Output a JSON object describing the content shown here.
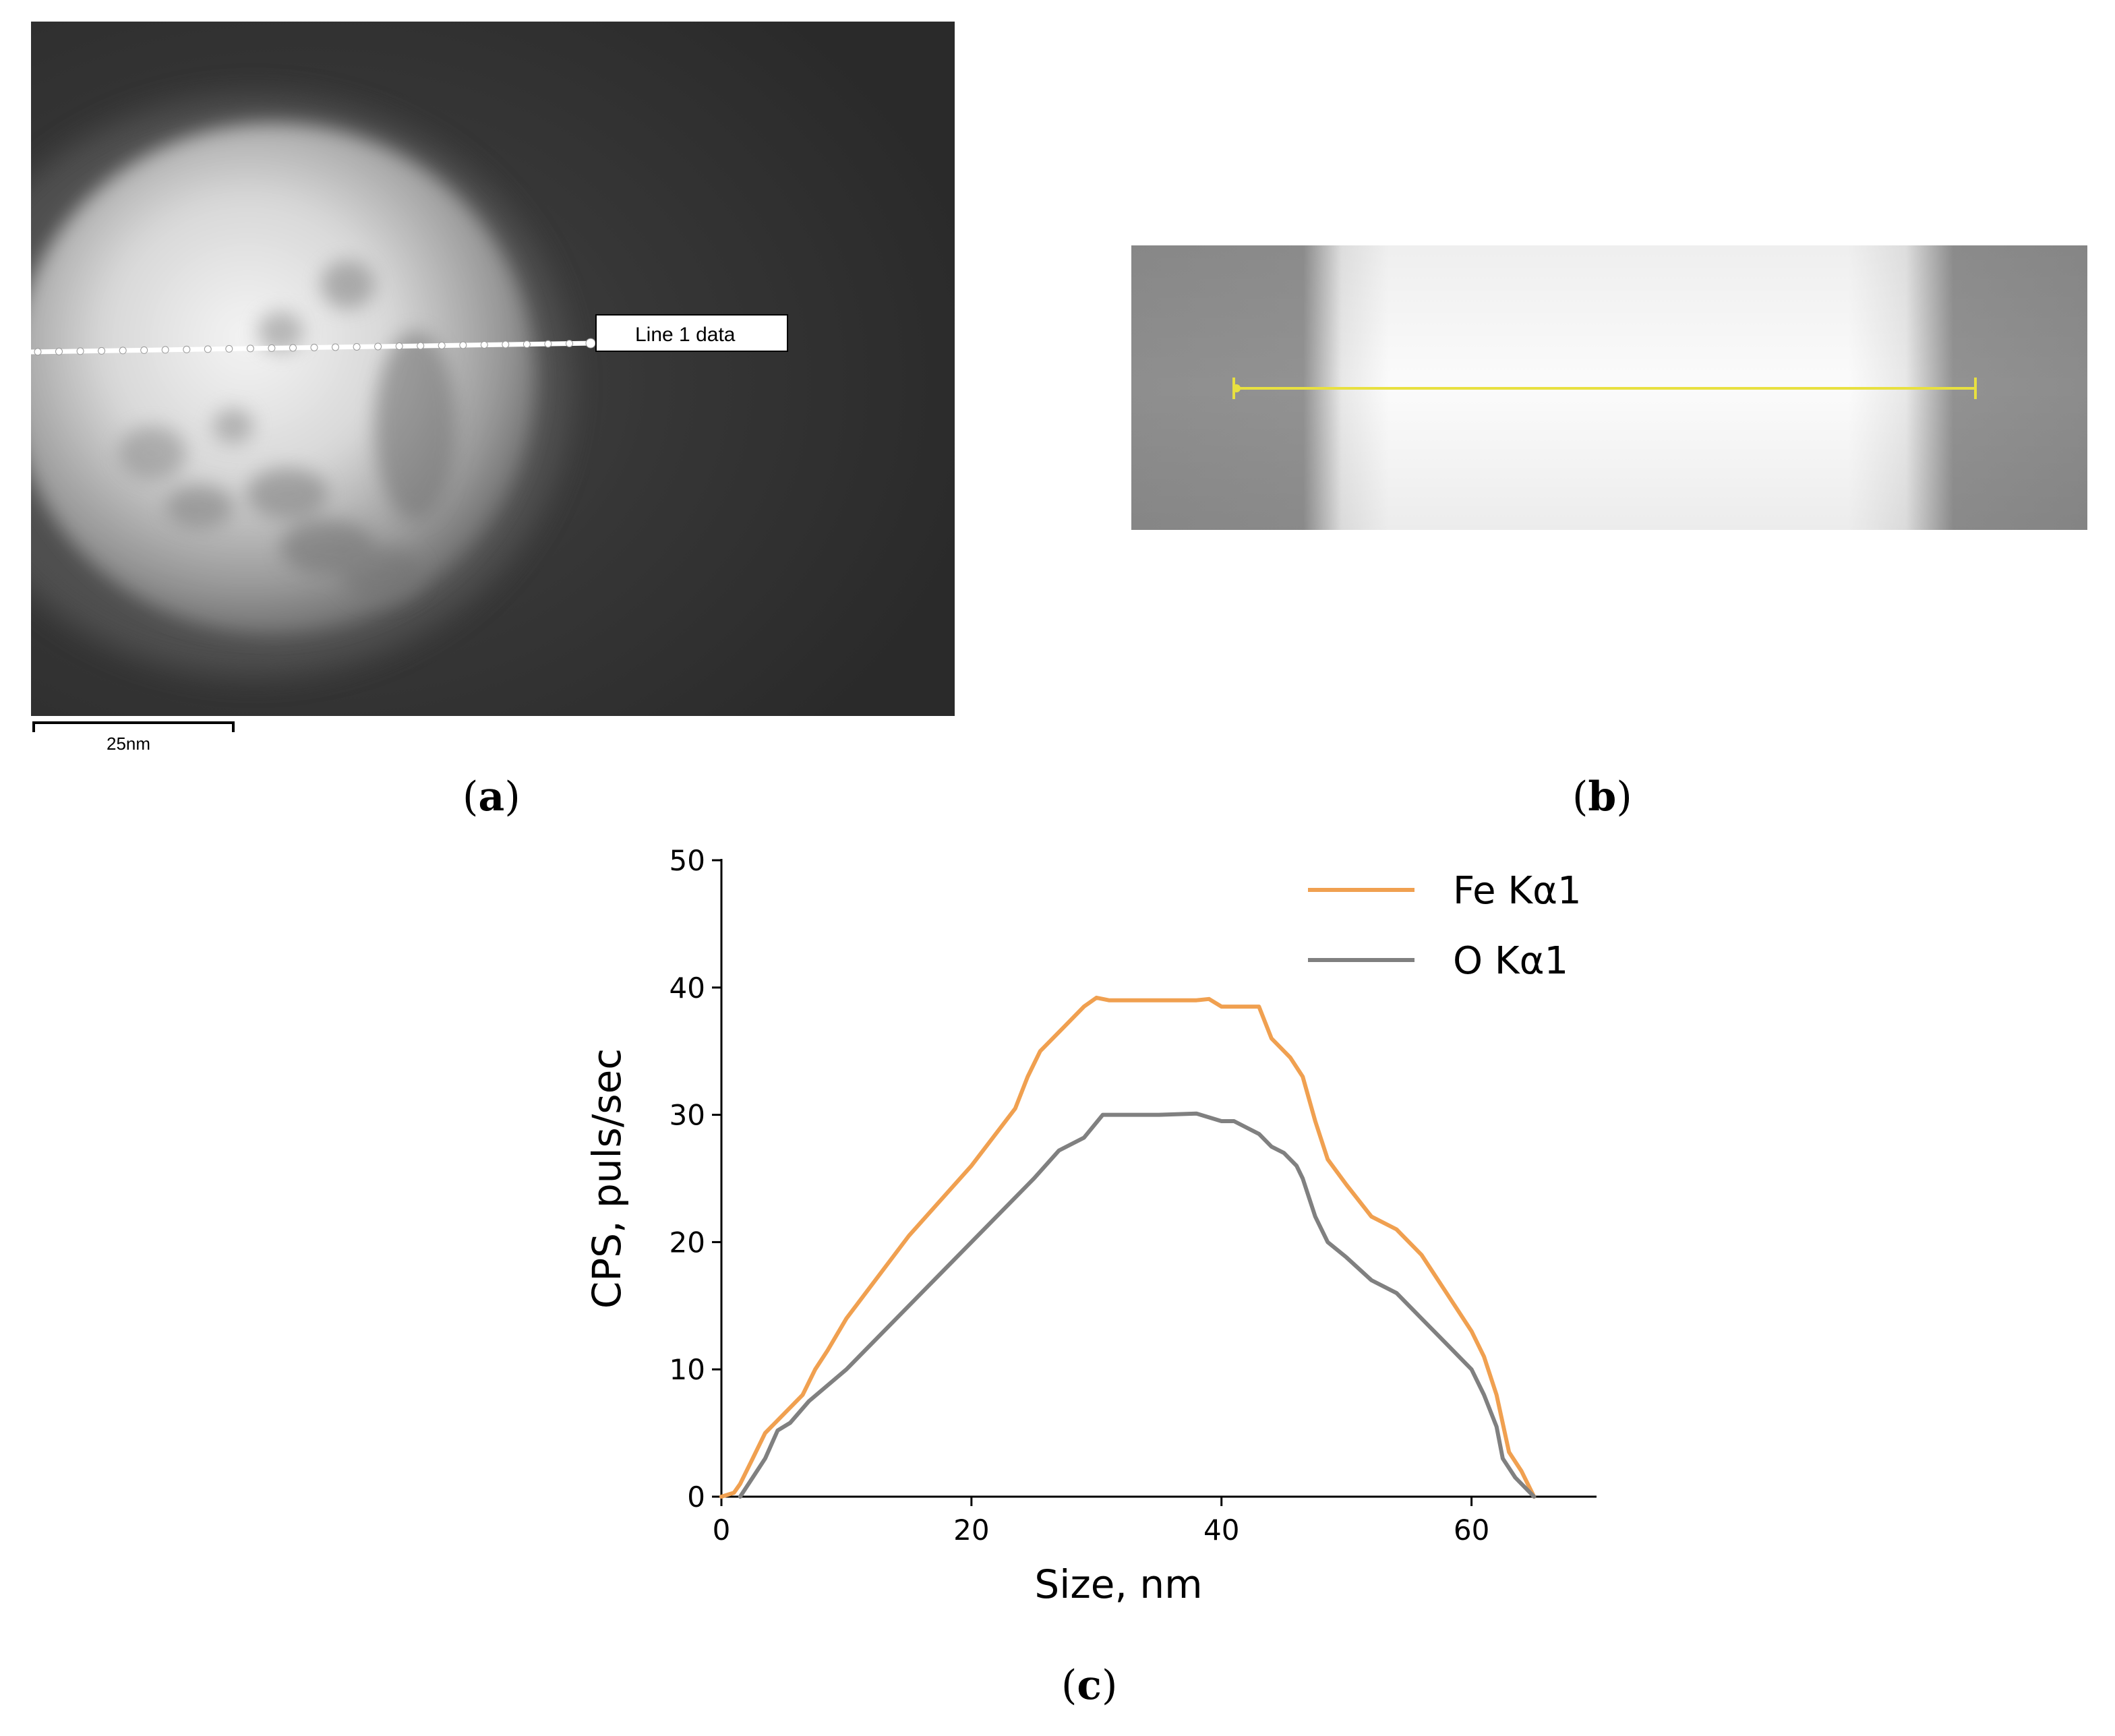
{
  "panels": {
    "a": {
      "label": "a",
      "line_label": "Line 1 data",
      "scale_bar_label": "25nm"
    },
    "b": {
      "label": "b"
    },
    "c": {
      "label": "c"
    }
  },
  "colors": {
    "fe_series": "#f0a050",
    "o_series": "#808080",
    "scan_line_b": "#e8e040",
    "axis": "#000000"
  },
  "chart_data": {
    "type": "line",
    "title": "",
    "xlabel": "Size, nm",
    "ylabel": "CPS, puls/sec",
    "xlim": [
      0,
      70
    ],
    "ylim": [
      0,
      50
    ],
    "xticks": [
      0,
      20,
      40,
      60
    ],
    "yticks": [
      0,
      10,
      20,
      30,
      40,
      50
    ],
    "grid": false,
    "legend_position": "top-right",
    "series": [
      {
        "name": "Fe Kα1",
        "color": "#f0a050",
        "points": [
          [
            0,
            0
          ],
          [
            1,
            0.3
          ],
          [
            1.5,
            1
          ],
          [
            2.5,
            3
          ],
          [
            3.5,
            5
          ],
          [
            5,
            6.5
          ],
          [
            6.5,
            8
          ],
          [
            7.5,
            10
          ],
          [
            8.5,
            11.5
          ],
          [
            10,
            14
          ],
          [
            15,
            20.5
          ],
          [
            20,
            26
          ],
          [
            23.5,
            30.5
          ],
          [
            24.5,
            33
          ],
          [
            25.5,
            35
          ],
          [
            27,
            36.5
          ],
          [
            29,
            38.5
          ],
          [
            30,
            39.2
          ],
          [
            31,
            39
          ],
          [
            35,
            39
          ],
          [
            38,
            39
          ],
          [
            39,
            39.1
          ],
          [
            40,
            38.5
          ],
          [
            42,
            38.5
          ],
          [
            43,
            38.5
          ],
          [
            44,
            36
          ],
          [
            45.5,
            34.5
          ],
          [
            46.5,
            33
          ],
          [
            47.5,
            29.5
          ],
          [
            48.5,
            26.5
          ],
          [
            50,
            24.5
          ],
          [
            52,
            22
          ],
          [
            54,
            21
          ],
          [
            56,
            19
          ],
          [
            58,
            16
          ],
          [
            60,
            13
          ],
          [
            61,
            11
          ],
          [
            62,
            8
          ],
          [
            63,
            3.5
          ],
          [
            64,
            2
          ],
          [
            65,
            0
          ]
        ]
      },
      {
        "name": "O Kα1",
        "color": "#808080",
        "points": [
          [
            1.5,
            0
          ],
          [
            2.5,
            1.5
          ],
          [
            3.5,
            3
          ],
          [
            4.5,
            5.2
          ],
          [
            5.5,
            5.8
          ],
          [
            7,
            7.5
          ],
          [
            10,
            10
          ],
          [
            15,
            15
          ],
          [
            20,
            20
          ],
          [
            25,
            25
          ],
          [
            27,
            27.2
          ],
          [
            29,
            28.2
          ],
          [
            30.5,
            30
          ],
          [
            32,
            30
          ],
          [
            35,
            30
          ],
          [
            38,
            30.1
          ],
          [
            39,
            29.8
          ],
          [
            40,
            29.5
          ],
          [
            41,
            29.5
          ],
          [
            42,
            29
          ],
          [
            43,
            28.5
          ],
          [
            44,
            27.5
          ],
          [
            45,
            27
          ],
          [
            46,
            26
          ],
          [
            46.5,
            25
          ],
          [
            47.5,
            22
          ],
          [
            48.5,
            20
          ],
          [
            50,
            18.8
          ],
          [
            52,
            17
          ],
          [
            54,
            16
          ],
          [
            56,
            14
          ],
          [
            58,
            12
          ],
          [
            60,
            10
          ],
          [
            61,
            8
          ],
          [
            62,
            5.5
          ],
          [
            62.5,
            3
          ],
          [
            63.5,
            1.5
          ],
          [
            65,
            0
          ]
        ]
      }
    ]
  }
}
